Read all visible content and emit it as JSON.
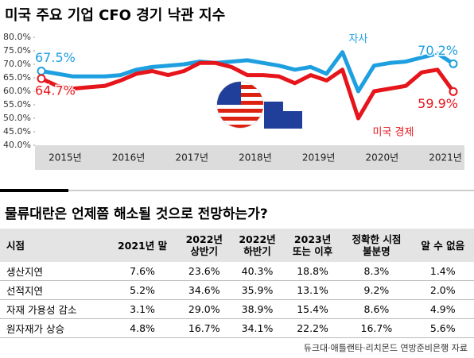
{
  "chart_data": {
    "type": "line",
    "title": "미국 주요 기업 CFO 경기 낙관 지수",
    "categories": [
      "2015년",
      null,
      null,
      null,
      "2016년",
      null,
      null,
      null,
      "2017년",
      null,
      null,
      null,
      "2018년",
      null,
      null,
      null,
      "2019년",
      null,
      null,
      null,
      "2020년",
      null,
      null,
      null,
      "2021년",
      null,
      null
    ],
    "series": [
      {
        "name": "자사",
        "color": "#1e9fe0",
        "values": [
          67.5,
          66.5,
          65.5,
          65.5,
          65.5,
          66,
          68,
          69,
          69.5,
          70,
          71,
          70.5,
          71,
          71.5,
          70.5,
          69.5,
          68,
          69,
          66.5,
          74.5,
          60,
          69.5,
          70.5,
          71,
          72.5,
          74,
          70.2
        ],
        "value_labels": [
          "67.5%",
          null,
          null,
          null,
          null,
          null,
          null,
          null,
          null,
          null,
          null,
          null,
          null,
          null,
          null,
          null,
          null,
          null,
          null,
          null,
          null,
          null,
          null,
          null,
          null,
          null,
          "70.2%"
        ]
      },
      {
        "name": "미국 경제",
        "color": "#e6151b",
        "values": [
          64.7,
          62,
          61,
          61.5,
          62,
          64,
          66.5,
          67.5,
          66,
          67.5,
          70.5,
          70.5,
          69,
          66,
          66,
          65.5,
          63,
          66,
          64,
          68,
          50,
          60,
          61,
          62,
          67,
          68,
          59.9
        ],
        "value_labels": [
          "64.7%",
          null,
          null,
          null,
          null,
          null,
          null,
          null,
          null,
          null,
          null,
          null,
          null,
          null,
          null,
          null,
          null,
          null,
          null,
          null,
          null,
          null,
          null,
          null,
          null,
          null,
          "59.9%"
        ]
      }
    ],
    "ylim": [
      40,
      80
    ],
    "yticks": [
      {
        "value": 40,
        "label": "40.0%"
      },
      {
        "value": 45,
        "label": "45.0%"
      },
      {
        "value": 50,
        "label": "50.0%"
      },
      {
        "value": 55,
        "label": "55.0%"
      },
      {
        "value": 60,
        "label": "60.0%"
      },
      {
        "value": 65,
        "label": "65.0%"
      },
      {
        "value": 70,
        "label": "70.0%"
      },
      {
        "value": 75,
        "label": "75.0%"
      },
      {
        "value": 80,
        "label": "80.0%"
      }
    ]
  },
  "table": {
    "title": "물류대란은 언제쯤 해소될 것으로 전망하는가?",
    "header": [
      "시점",
      "2021년 말",
      "2022년\n상반기",
      "2022년\n하반기",
      "2023년\n또는 이후",
      "정확한 시점\n불분명",
      "알 수 없음"
    ],
    "rows": [
      [
        "생산지연",
        "7.6%",
        "23.6%",
        "40.3%",
        "18.8%",
        "8.3%",
        "1.4%"
      ],
      [
        "선적지연",
        "5.2%",
        "34.6%",
        "35.9%",
        "13.1%",
        "9.2%",
        "2.0%"
      ],
      [
        "자재 가용성 감소",
        "3.1%",
        "29.0%",
        "38.9%",
        "15.4%",
        "8.6%",
        "4.9%"
      ],
      [
        "원자재가 상승",
        "4.8%",
        "16.7%",
        "34.1%",
        "22.2%",
        "16.7%",
        "5.6%"
      ]
    ],
    "source": "듀크대·애틀랜타·리치몬드 연방준비은행 자료"
  }
}
